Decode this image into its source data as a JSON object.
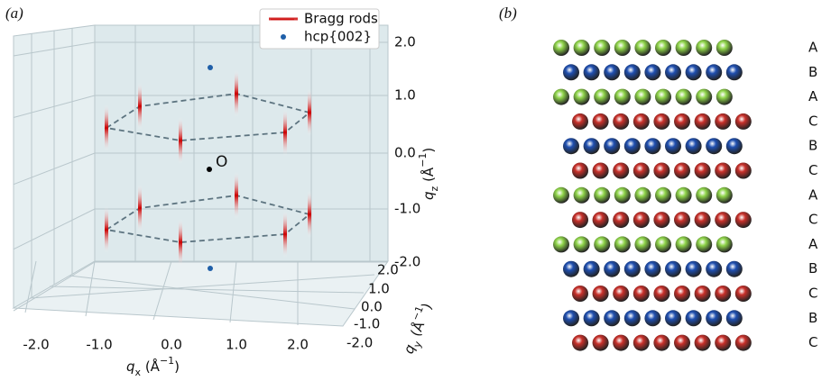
{
  "panel_a": {
    "label": "(a)",
    "legend": [
      "Bragg rods",
      "hcp{002}"
    ],
    "origin": "O",
    "qz_ticks": [
      "2.0",
      "1.0",
      "0.0",
      "-1.0",
      "-2.0"
    ],
    "qx_ticks": [
      "-2.0",
      "-1.0",
      "0.0",
      "1.0",
      "2.0"
    ],
    "qy_ticks": [
      "2.0",
      "1.0",
      "0.0",
      "-1.0",
      "-2.0"
    ],
    "qx_label": {
      "var": "q",
      "sub": "x",
      "unit": " (Å",
      "sup": "−1",
      "close": ")"
    },
    "qy_label": {
      "var": "q",
      "sub": "y",
      "unit": " (Å",
      "sup": "−1",
      "close": ")"
    },
    "qz_label": {
      "var": "q",
      "sub": "z",
      "unit": " (Å",
      "sup": "−1",
      "close": ")"
    }
  },
  "panel_b": {
    "label": "(b)",
    "layers": [
      "A",
      "B",
      "A",
      "C",
      "B",
      "C",
      "A",
      "C",
      "A",
      "B",
      "C",
      "B",
      "C"
    ],
    "colors": {
      "A": "#8fd44a",
      "B": "#1f4fb0",
      "C": "#c8302a"
    }
  }
}
